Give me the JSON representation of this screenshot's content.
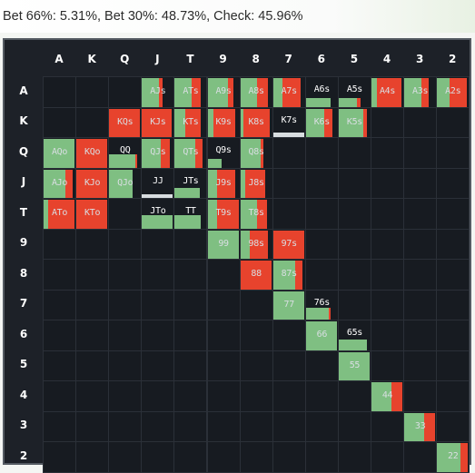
{
  "summary": "Bet 66%: 5.31%, Bet 30%: 48.73%, Check: 45.96%",
  "colors": {
    "bet_66": "#e7432d",
    "bet_30": "#7fbf82",
    "check": "#d8dde0",
    "cell_bg": "#171b21",
    "panel_bg": "#1d2128"
  },
  "ranks": [
    "A",
    "K",
    "Q",
    "J",
    "T",
    "9",
    "8",
    "7",
    "6",
    "5",
    "4",
    "3",
    "2"
  ],
  "hands": [
    {
      "label": "AJs",
      "row": 0,
      "col": 3,
      "height": 1,
      "mix": {
        "bet_66": 0.12,
        "bet_30": 0.55,
        "check": 0.0
      }
    },
    {
      "label": "ATs",
      "row": 0,
      "col": 4,
      "height": 1,
      "mix": {
        "bet_66": 0.3,
        "bet_30": 0.55,
        "check": 0.0
      }
    },
    {
      "label": "A9s",
      "row": 0,
      "col": 5,
      "height": 1,
      "mix": {
        "bet_66": 0.2,
        "bet_30": 0.65,
        "check": 0.0
      }
    },
    {
      "label": "A8s",
      "row": 0,
      "col": 6,
      "height": 1,
      "mix": {
        "bet_66": 0.35,
        "bet_30": 0.55,
        "check": 0.0
      }
    },
    {
      "label": "A7s",
      "row": 0,
      "col": 7,
      "height": 1,
      "mix": {
        "bet_66": 0.6,
        "bet_30": 0.3,
        "check": 0.0
      }
    },
    {
      "label": "A6s",
      "row": 0,
      "col": 8,
      "height": 0.3,
      "mix": {
        "bet_66": 0.0,
        "bet_30": 0.8,
        "check": 0.0
      }
    },
    {
      "label": "A5s",
      "row": 0,
      "col": 9,
      "height": 0.3,
      "mix": {
        "bet_66": 0.1,
        "bet_30": 0.6,
        "check": 0.0
      }
    },
    {
      "label": "A4s",
      "row": 0,
      "col": 10,
      "height": 1,
      "mix": {
        "bet_66": 0.8,
        "bet_30": 0.18,
        "check": 0.0
      }
    },
    {
      "label": "A3s",
      "row": 0,
      "col": 11,
      "height": 1,
      "mix": {
        "bet_66": 0.25,
        "bet_30": 0.55,
        "check": 0.0
      }
    },
    {
      "label": "A2s",
      "row": 0,
      "col": 12,
      "height": 1,
      "mix": {
        "bet_66": 0.55,
        "bet_30": 0.4,
        "check": 0.0
      }
    },
    {
      "label": "KQs",
      "row": 1,
      "col": 2,
      "height": 1,
      "mix": {
        "bet_66": 1.0,
        "bet_30": 0.0,
        "check": 0.0
      }
    },
    {
      "label": "KJs",
      "row": 1,
      "col": 3,
      "height": 1,
      "mix": {
        "bet_66": 0.95,
        "bet_30": 0.0,
        "check": 0.0
      }
    },
    {
      "label": "KTs",
      "row": 1,
      "col": 4,
      "height": 1,
      "mix": {
        "bet_66": 0.5,
        "bet_30": 0.35,
        "check": 0.0
      }
    },
    {
      "label": "K9s",
      "row": 1,
      "col": 5,
      "height": 1,
      "mix": {
        "bet_66": 0.7,
        "bet_30": 0.2,
        "check": 0.0
      }
    },
    {
      "label": "K8s",
      "row": 1,
      "col": 6,
      "height": 1,
      "mix": {
        "bet_66": 0.85,
        "bet_30": 0.1,
        "check": 0.0
      }
    },
    {
      "label": "K7s",
      "row": 1,
      "col": 7,
      "height": 0.15,
      "mix": {
        "bet_66": 0.0,
        "bet_30": 0.0,
        "check": 1.0
      }
    },
    {
      "label": "K6s",
      "row": 1,
      "col": 8,
      "height": 1,
      "mix": {
        "bet_66": 0.25,
        "bet_30": 0.6,
        "check": 0.0
      }
    },
    {
      "label": "K5s",
      "row": 1,
      "col": 9,
      "height": 1,
      "mix": {
        "bet_66": 0.1,
        "bet_30": 0.8,
        "check": 0.0
      }
    },
    {
      "label": "AQo",
      "row": 2,
      "col": 0,
      "height": 1,
      "mix": {
        "bet_66": 0.0,
        "bet_30": 1.0,
        "check": 0.0
      }
    },
    {
      "label": "KQo",
      "row": 2,
      "col": 1,
      "height": 1,
      "mix": {
        "bet_66": 1.0,
        "bet_30": 0.0,
        "check": 0.0
      }
    },
    {
      "label": "QQ",
      "row": 2,
      "col": 2,
      "height": 0.45,
      "mix": {
        "bet_66": 0.05,
        "bet_30": 0.85,
        "check": 0.0
      }
    },
    {
      "label": "QJs",
      "row": 2,
      "col": 3,
      "height": 1,
      "mix": {
        "bet_66": 0.3,
        "bet_30": 0.6,
        "check": 0.0
      }
    },
    {
      "label": "QTs",
      "row": 2,
      "col": 4,
      "height": 1,
      "mix": {
        "bet_66": 0.25,
        "bet_30": 0.65,
        "check": 0.0
      }
    },
    {
      "label": "Q9s",
      "row": 2,
      "col": 5,
      "height": 0.3,
      "mix": {
        "bet_66": 0.0,
        "bet_30": 0.45,
        "check": 0.0
      }
    },
    {
      "label": "Q8s",
      "row": 2,
      "col": 6,
      "height": 1,
      "mix": {
        "bet_66": 0.1,
        "bet_30": 0.65,
        "check": 0.0
      }
    },
    {
      "label": "AJo",
      "row": 3,
      "col": 0,
      "height": 1,
      "mix": {
        "bet_66": 0.25,
        "bet_30": 0.7,
        "check": 0.0
      }
    },
    {
      "label": "KJo",
      "row": 3,
      "col": 1,
      "height": 1,
      "mix": {
        "bet_66": 1.0,
        "bet_30": 0.0,
        "check": 0.0
      }
    },
    {
      "label": "QJo",
      "row": 3,
      "col": 2,
      "height": 1,
      "mix": {
        "bet_66": 0.0,
        "bet_30": 0.75,
        "check": 0.0
      }
    },
    {
      "label": "JJ",
      "row": 3,
      "col": 3,
      "height": 0.12,
      "mix": {
        "bet_66": 0.0,
        "bet_30": 0.0,
        "check": 1.0
      }
    },
    {
      "label": "JTs",
      "row": 3,
      "col": 4,
      "height": 0.35,
      "mix": {
        "bet_66": 0.0,
        "bet_30": 0.8,
        "check": 0.0
      }
    },
    {
      "label": "J9s",
      "row": 3,
      "col": 5,
      "height": 1,
      "mix": {
        "bet_66": 0.6,
        "bet_30": 0.3,
        "check": 0.0
      }
    },
    {
      "label": "J8s",
      "row": 3,
      "col": 6,
      "height": 1,
      "mix": {
        "bet_66": 0.65,
        "bet_30": 0.15,
        "check": 0.0
      }
    },
    {
      "label": "ATo",
      "row": 4,
      "col": 0,
      "height": 1,
      "mix": {
        "bet_66": 0.85,
        "bet_30": 0.15,
        "check": 0.0
      }
    },
    {
      "label": "KTo",
      "row": 4,
      "col": 1,
      "height": 1,
      "mix": {
        "bet_66": 1.0,
        "bet_30": 0.0,
        "check": 0.0
      }
    },
    {
      "label": "JTo",
      "row": 4,
      "col": 3,
      "height": 0.45,
      "mix": {
        "bet_66": 0.0,
        "bet_30": 1.0,
        "check": 0.0
      }
    },
    {
      "label": "TT",
      "row": 4,
      "col": 4,
      "height": 0.45,
      "mix": {
        "bet_66": 0.0,
        "bet_30": 0.85,
        "check": 0.0
      }
    },
    {
      "label": "T9s",
      "row": 4,
      "col": 5,
      "height": 1,
      "mix": {
        "bet_66": 0.7,
        "bet_30": 0.3,
        "check": 0.0
      }
    },
    {
      "label": "T8s",
      "row": 4,
      "col": 6,
      "height": 1,
      "mix": {
        "bet_66": 0.3,
        "bet_30": 0.55,
        "check": 0.0
      }
    },
    {
      "label": "99",
      "row": 5,
      "col": 5,
      "height": 1,
      "mix": {
        "bet_66": 0.0,
        "bet_30": 1.0,
        "check": 0.0
      }
    },
    {
      "label": "98s",
      "row": 5,
      "col": 6,
      "height": 1,
      "mix": {
        "bet_66": 0.6,
        "bet_30": 0.3,
        "check": 0.0
      }
    },
    {
      "label": "97s",
      "row": 5,
      "col": 7,
      "height": 1,
      "mix": {
        "bet_66": 1.0,
        "bet_30": 0.0,
        "check": 0.0
      }
    },
    {
      "label": "88",
      "row": 6,
      "col": 6,
      "height": 1,
      "mix": {
        "bet_66": 1.0,
        "bet_30": 0.0,
        "check": 0.0
      }
    },
    {
      "label": "87s",
      "row": 6,
      "col": 7,
      "height": 1,
      "mix": {
        "bet_66": 0.25,
        "bet_30": 0.7,
        "check": 0.0
      }
    },
    {
      "label": "77",
      "row": 7,
      "col": 7,
      "height": 1,
      "mix": {
        "bet_66": 0.0,
        "bet_30": 1.0,
        "check": 0.0
      }
    },
    {
      "label": "76s",
      "row": 7,
      "col": 8,
      "height": 0.4,
      "mix": {
        "bet_66": 0.05,
        "bet_30": 0.75,
        "check": 0.0
      }
    },
    {
      "label": "66",
      "row": 8,
      "col": 8,
      "height": 1,
      "mix": {
        "bet_66": 0.0,
        "bet_30": 1.0,
        "check": 0.0
      }
    },
    {
      "label": "65s",
      "row": 8,
      "col": 9,
      "height": 0.35,
      "mix": {
        "bet_66": 0.0,
        "bet_30": 0.9,
        "check": 0.0
      }
    },
    {
      "label": "55",
      "row": 9,
      "col": 9,
      "height": 1,
      "mix": {
        "bet_66": 0.0,
        "bet_30": 1.0,
        "check": 0.0
      }
    },
    {
      "label": "44",
      "row": 10,
      "col": 10,
      "height": 1,
      "mix": {
        "bet_66": 0.35,
        "bet_30": 0.65,
        "check": 0.0
      }
    },
    {
      "label": "33",
      "row": 11,
      "col": 11,
      "height": 1,
      "mix": {
        "bet_66": 0.35,
        "bet_30": 0.65,
        "check": 0.0
      }
    },
    {
      "label": "22",
      "row": 12,
      "col": 12,
      "height": 1,
      "mix": {
        "bet_66": 0.25,
        "bet_30": 0.75,
        "check": 0.0
      }
    }
  ]
}
